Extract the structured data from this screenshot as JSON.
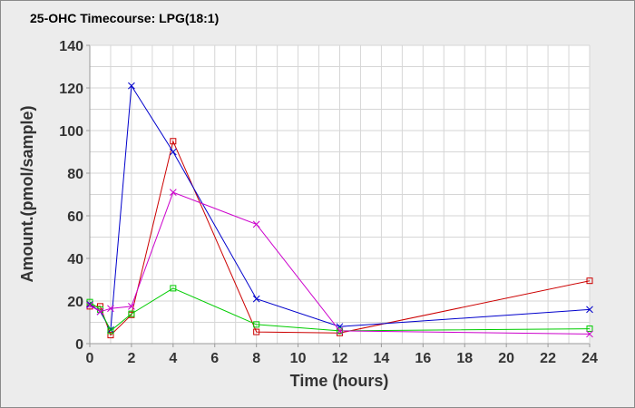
{
  "chart_data": {
    "type": "line",
    "title": "25-OHC Timecourse: LPG(18:1)",
    "xlabel": "Time (hours)",
    "ylabel": "Amount.(pmol/sample)",
    "xlim": [
      0,
      24
    ],
    "ylim": [
      0,
      140
    ],
    "xticks": [
      0,
      2,
      4,
      6,
      8,
      10,
      12,
      14,
      16,
      18,
      20,
      22,
      24
    ],
    "yticks": [
      0,
      20,
      40,
      60,
      80,
      100,
      120,
      140
    ],
    "grid": true,
    "legend": "none",
    "series": [
      {
        "color": "#cc0000",
        "marker": "square",
        "points": [
          [
            0,
            17.5
          ],
          [
            0.5,
            17.5
          ],
          [
            1,
            4
          ],
          [
            2,
            13.5
          ],
          [
            4,
            95
          ],
          [
            8,
            5.5
          ],
          [
            12,
            5
          ],
          [
            24,
            29.5
          ]
        ]
      },
      {
        "color": "#0000cc",
        "marker": "cross",
        "points": [
          [
            0,
            18.5
          ],
          [
            0.5,
            15
          ],
          [
            1,
            6.5
          ],
          [
            2,
            121
          ],
          [
            4,
            90
          ],
          [
            8,
            21
          ],
          [
            12,
            8
          ],
          [
            24,
            16
          ]
        ]
      },
      {
        "color": "#00cc00",
        "marker": "square",
        "points": [
          [
            0,
            19.5
          ],
          [
            0.5,
            16
          ],
          [
            1,
            6
          ],
          [
            2,
            14
          ],
          [
            4,
            26
          ],
          [
            8,
            9
          ],
          [
            12,
            6
          ],
          [
            24,
            7
          ]
        ]
      },
      {
        "color": "#cc00cc",
        "marker": "cross",
        "points": [
          [
            0,
            18
          ],
          [
            0.5,
            15
          ],
          [
            1,
            16.5
          ],
          [
            2,
            17.5
          ],
          [
            4,
            71
          ],
          [
            8,
            56
          ],
          [
            12,
            6
          ],
          [
            24,
            4.5
          ]
        ]
      }
    ]
  }
}
